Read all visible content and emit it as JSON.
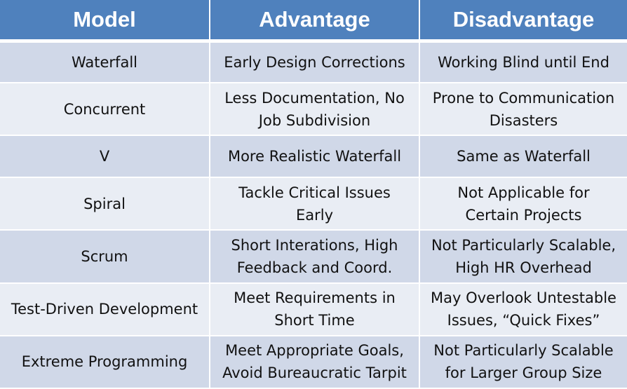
{
  "header": {
    "model": "Model",
    "advantage": "Advantage",
    "disadvantage": "Disadvantage"
  },
  "rows": [
    {
      "model": "Waterfall",
      "advantage": "Early Design Corrections",
      "disadvantage": "Working Blind until End"
    },
    {
      "model": "Concurrent",
      "advantage": "Less Documentation, No\nJob Subdivision",
      "disadvantage": "Prone to Communication\nDisasters"
    },
    {
      "model": "V",
      "advantage": "More Realistic Waterfall",
      "disadvantage": "Same as Waterfall"
    },
    {
      "model": "Spiral",
      "advantage": "Tackle Critical Issues\nEarly",
      "disadvantage": "Not Applicable for\nCertain Projects"
    },
    {
      "model": "Scrum",
      "advantage": "Short Interations, High\nFeedback and Coord.",
      "disadvantage": "Not Particularly Scalable,\nHigh HR Overhead"
    },
    {
      "model": "Test-Driven Development",
      "advantage": "Meet Requirements in\nShort Time",
      "disadvantage": "May Overlook Untestable\nIssues, “Quick Fixes”"
    },
    {
      "model": "Extreme Programming",
      "advantage": "Meet Appropriate Goals,\nAvoid Bureaucratic Tarpit",
      "disadvantage": "Not Particularly Scalable\nfor Larger Group Size"
    }
  ],
  "colors": {
    "header_bg": "#4f81bd",
    "row_odd_bg": "#d0d8e8",
    "row_even_bg": "#e9edf4"
  }
}
